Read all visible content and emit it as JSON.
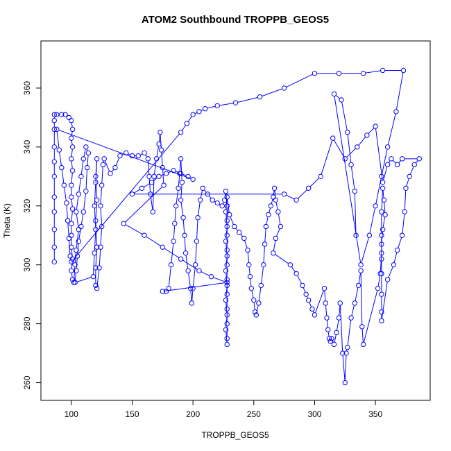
{
  "chart_data": {
    "type": "scatter",
    "title": "ATOM2 Southbound TROPPB_GEOS5",
    "xlabel": "TROPPB_GEOS5",
    "ylabel": "Theta (K)",
    "xlim": [
      75,
      395
    ],
    "ylim": [
      254,
      376
    ],
    "xticks": [
      100,
      150,
      200,
      250,
      300,
      350
    ],
    "yticks": [
      260,
      280,
      300,
      320,
      340,
      360
    ],
    "grid": false,
    "series_color": "#0000ff",
    "marker": "open-circle",
    "connected": true,
    "points": [
      [
        86,
        301
      ],
      [
        86,
        306
      ],
      [
        86,
        312
      ],
      [
        86,
        318
      ],
      [
        86,
        323
      ],
      [
        86,
        330
      ],
      [
        86,
        335
      ],
      [
        86,
        340
      ],
      [
        86,
        346
      ],
      [
        86,
        349
      ],
      [
        86,
        351
      ],
      [
        88,
        351
      ],
      [
        92,
        351
      ],
      [
        95,
        351
      ],
      [
        98,
        350
      ],
      [
        100,
        349
      ],
      [
        101,
        346
      ],
      [
        100,
        343
      ],
      [
        101,
        340
      ],
      [
        100,
        336
      ],
      [
        101,
        332
      ],
      [
        100,
        327
      ],
      [
        100,
        323
      ],
      [
        101,
        319
      ],
      [
        100,
        314
      ],
      [
        100,
        310
      ],
      [
        100,
        306
      ],
      [
        101,
        302
      ],
      [
        100,
        298
      ],
      [
        101,
        295
      ],
      [
        102,
        294
      ],
      [
        103,
        300
      ],
      [
        104,
        305
      ],
      [
        106,
        312
      ],
      [
        104,
        318
      ],
      [
        106,
        324
      ],
      [
        108,
        330
      ],
      [
        110,
        336
      ],
      [
        112,
        340
      ],
      [
        114,
        338
      ],
      [
        113,
        333
      ],
      [
        112,
        325
      ],
      [
        110,
        318
      ],
      [
        108,
        313
      ],
      [
        106,
        308
      ],
      [
        105,
        303
      ],
      [
        104,
        298
      ],
      [
        103,
        294
      ],
      [
        118,
        296
      ],
      [
        119,
        304
      ],
      [
        120,
        312
      ],
      [
        119,
        320
      ],
      [
        120,
        328
      ],
      [
        121,
        336
      ],
      [
        120,
        330
      ],
      [
        121,
        322
      ],
      [
        120,
        315
      ],
      [
        121,
        306
      ],
      [
        120,
        299
      ],
      [
        120,
        293
      ],
      [
        121,
        292
      ],
      [
        123,
        299
      ],
      [
        124,
        306
      ],
      [
        125,
        313
      ],
      [
        124,
        320
      ],
      [
        125,
        327
      ],
      [
        126,
        334
      ],
      [
        127,
        336
      ],
      [
        132,
        331
      ],
      [
        136,
        333
      ],
      [
        140,
        337
      ],
      [
        145,
        338
      ],
      [
        150,
        337
      ],
      [
        155,
        337
      ],
      [
        160,
        338
      ],
      [
        163,
        336
      ],
      [
        164,
        330
      ],
      [
        165,
        324
      ],
      [
        167,
        318
      ],
      [
        168,
        330
      ],
      [
        170,
        336
      ],
      [
        172,
        341
      ],
      [
        173,
        345
      ],
      [
        174,
        339
      ],
      [
        175,
        333
      ],
      [
        176,
        327
      ],
      [
        143,
        314
      ],
      [
        160,
        310
      ],
      [
        175,
        306
      ],
      [
        190,
        302
      ],
      [
        205,
        298
      ],
      [
        215,
        296
      ],
      [
        228,
        294
      ],
      [
        175,
        291
      ],
      [
        178,
        291
      ],
      [
        180,
        292
      ],
      [
        182,
        300
      ],
      [
        184,
        308
      ],
      [
        185,
        314
      ],
      [
        186,
        320
      ],
      [
        188,
        326
      ],
      [
        189,
        331
      ],
      [
        190,
        336
      ],
      [
        191,
        328
      ],
      [
        190,
        322
      ],
      [
        192,
        316
      ],
      [
        193,
        310
      ],
      [
        194,
        304
      ],
      [
        196,
        298
      ],
      [
        198,
        292
      ],
      [
        199,
        287
      ],
      [
        200,
        292
      ],
      [
        202,
        300
      ],
      [
        203,
        308
      ],
      [
        204,
        316
      ],
      [
        206,
        322
      ],
      [
        208,
        326
      ],
      [
        212,
        324
      ],
      [
        216,
        322
      ],
      [
        220,
        321
      ],
      [
        224,
        320
      ],
      [
        226,
        322
      ],
      [
        227,
        325
      ],
      [
        228,
        320
      ],
      [
        228,
        315
      ],
      [
        228,
        310
      ],
      [
        228,
        305
      ],
      [
        228,
        300
      ],
      [
        228,
        295
      ],
      [
        228,
        290
      ],
      [
        228,
        285
      ],
      [
        228,
        280
      ],
      [
        228,
        275
      ],
      [
        228,
        273
      ],
      [
        227,
        278
      ],
      [
        228,
        283
      ],
      [
        227,
        288
      ],
      [
        228,
        293
      ],
      [
        227,
        298
      ],
      [
        228,
        303
      ],
      [
        227,
        308
      ],
      [
        228,
        313
      ],
      [
        227,
        318
      ],
      [
        228,
        323
      ],
      [
        230,
        317
      ],
      [
        234,
        313
      ],
      [
        238,
        311
      ],
      [
        242,
        309
      ],
      [
        245,
        305
      ],
      [
        246,
        300
      ],
      [
        247,
        296
      ],
      [
        248,
        292
      ],
      [
        250,
        288
      ],
      [
        251,
        284
      ],
      [
        252,
        283
      ],
      [
        254,
        287
      ],
      [
        256,
        293
      ],
      [
        258,
        300
      ],
      [
        259,
        307
      ],
      [
        260,
        313
      ],
      [
        262,
        317
      ],
      [
        264,
        320
      ],
      [
        266,
        323
      ],
      [
        267,
        326
      ],
      [
        268,
        322
      ],
      [
        270,
        318
      ],
      [
        272,
        313
      ],
      [
        268,
        309
      ],
      [
        266,
        304
      ],
      [
        280,
        300
      ],
      [
        285,
        297
      ],
      [
        290,
        293
      ],
      [
        293,
        290
      ],
      [
        295,
        288
      ],
      [
        298,
        285
      ],
      [
        300,
        283
      ],
      [
        308,
        292
      ],
      [
        309,
        287
      ],
      [
        310,
        282
      ],
      [
        311,
        278
      ],
      [
        312,
        275
      ],
      [
        313,
        274
      ],
      [
        314,
        275
      ],
      [
        316,
        273
      ],
      [
        318,
        277
      ],
      [
        320,
        282
      ],
      [
        321,
        287
      ],
      [
        323,
        270
      ],
      [
        325,
        260
      ],
      [
        326,
        270
      ],
      [
        327,
        272
      ],
      [
        330,
        282
      ],
      [
        333,
        287
      ],
      [
        336,
        293
      ],
      [
        338,
        298
      ],
      [
        339,
        279
      ],
      [
        340,
        273
      ],
      [
        352,
        292
      ],
      [
        354,
        297
      ],
      [
        355,
        304
      ],
      [
        355,
        310
      ],
      [
        355,
        318
      ],
      [
        356,
        326
      ],
      [
        357,
        322
      ],
      [
        358,
        317
      ],
      [
        356,
        312
      ],
      [
        355,
        307
      ],
      [
        355,
        302
      ],
      [
        355,
        297
      ],
      [
        355,
        290
      ],
      [
        355,
        284
      ],
      [
        355,
        281
      ],
      [
        360,
        295
      ],
      [
        365,
        300
      ],
      [
        368,
        305
      ],
      [
        372,
        310
      ],
      [
        374,
        318
      ],
      [
        375,
        326
      ],
      [
        378,
        330
      ],
      [
        382,
        334
      ],
      [
        386,
        336
      ],
      [
        372,
        336
      ],
      [
        368,
        334
      ],
      [
        363,
        336
      ],
      [
        360,
        334
      ],
      [
        356,
        328
      ],
      [
        350,
        347
      ],
      [
        343,
        344
      ],
      [
        335,
        340
      ],
      [
        325,
        336
      ],
      [
        315,
        343
      ],
      [
        305,
        330
      ],
      [
        295,
        326
      ],
      [
        285,
        322
      ],
      [
        275,
        324
      ],
      [
        150,
        324
      ],
      [
        158,
        326
      ],
      [
        166,
        328
      ],
      [
        172,
        330
      ],
      [
        178,
        331
      ],
      [
        184,
        332
      ],
      [
        190,
        331
      ],
      [
        196,
        330
      ],
      [
        200,
        329
      ],
      [
        88,
        346
      ],
      [
        90,
        339
      ],
      [
        92,
        333
      ],
      [
        94,
        327
      ],
      [
        96,
        321
      ],
      [
        97,
        315
      ],
      [
        98,
        309
      ],
      [
        99,
        303
      ],
      [
        100,
        301
      ],
      [
        190,
        345
      ],
      [
        195,
        348
      ],
      [
        200,
        351
      ],
      [
        205,
        352
      ],
      [
        210,
        353
      ],
      [
        220,
        354
      ],
      [
        235,
        355
      ],
      [
        255,
        357
      ],
      [
        275,
        360
      ],
      [
        300,
        365
      ],
      [
        320,
        365
      ],
      [
        340,
        365
      ],
      [
        356,
        366
      ],
      [
        373,
        366
      ],
      [
        367,
        352
      ],
      [
        360,
        340
      ],
      [
        355,
        330
      ],
      [
        350,
        320
      ],
      [
        345,
        310
      ],
      [
        338,
        300
      ],
      [
        316,
        358
      ],
      [
        322,
        356
      ],
      [
        327,
        345
      ],
      [
        330,
        334
      ],
      [
        333,
        325
      ],
      [
        334,
        310
      ]
    ]
  }
}
